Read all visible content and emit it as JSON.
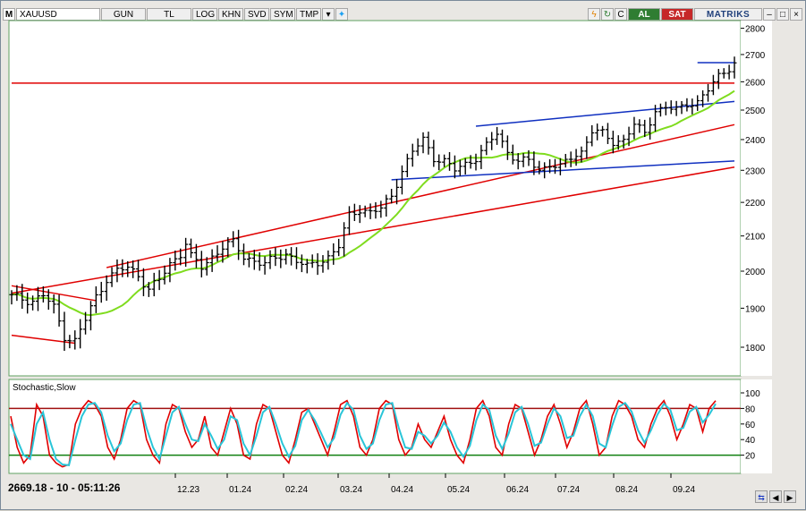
{
  "toolbar": {
    "logo": "M",
    "symbol": "XAUUSD",
    "buttons": [
      "GUN",
      "TL",
      "LOG",
      "KHN",
      "SVD",
      "SYM",
      "TMP"
    ],
    "buy_label": "AL",
    "sell_label": "SAT",
    "brand": "MATRIKS",
    "colors": {
      "buy": "#2f7d32",
      "sell": "#c62828"
    }
  },
  "status_text": "2669.18 - 10 - 05:11:26",
  "chart_data": [
    {
      "type": "line",
      "subtype": "ohlc-bars",
      "title": "",
      "x_ticks": [
        "12.23",
        "01.24",
        "02.24",
        "03.24",
        "04.24",
        "05.24",
        "06.24",
        "07.24",
        "08.24",
        "09.24"
      ],
      "y_ticks": [
        1800,
        1900,
        2000,
        2100,
        2200,
        2300,
        2400,
        2500,
        2600,
        2700,
        2800
      ],
      "ylim": [
        1730,
        2830
      ],
      "y_scale": "log",
      "grid": false,
      "price_keypoints": [
        [
          0,
          1930
        ],
        [
          4,
          1920
        ],
        [
          6,
          1935
        ],
        [
          8,
          1900
        ],
        [
          10,
          1830
        ],
        [
          12,
          1815
        ],
        [
          14,
          1870
        ],
        [
          16,
          1930
        ],
        [
          18,
          1980
        ],
        [
          20,
          2000
        ],
        [
          22,
          2010
        ],
        [
          24,
          1990
        ],
        [
          26,
          1950
        ],
        [
          28,
          1975
        ],
        [
          30,
          2020
        ],
        [
          32,
          2050
        ],
        [
          33,
          2080
        ],
        [
          34,
          2040
        ],
        [
          36,
          2010
        ],
        [
          38,
          2040
        ],
        [
          40,
          2070
        ],
        [
          42,
          2080
        ],
        [
          44,
          2040
        ],
        [
          46,
          2030
        ],
        [
          48,
          2020
        ],
        [
          50,
          2035
        ],
        [
          52,
          2050
        ],
        [
          54,
          2030
        ],
        [
          56,
          2010
        ],
        [
          58,
          2025
        ],
        [
          60,
          2040
        ],
        [
          62,
          2070
        ],
        [
          64,
          2160
        ],
        [
          66,
          2180
        ],
        [
          68,
          2170
        ],
        [
          70,
          2180
        ],
        [
          72,
          2220
        ],
        [
          74,
          2300
        ],
        [
          76,
          2360
        ],
        [
          78,
          2400
        ],
        [
          80,
          2340
        ],
        [
          82,
          2330
        ],
        [
          84,
          2300
        ],
        [
          86,
          2320
        ],
        [
          88,
          2340
        ],
        [
          90,
          2380
        ],
        [
          92,
          2420
        ],
        [
          94,
          2360
        ],
        [
          96,
          2330
        ],
        [
          98,
          2330
        ],
        [
          100,
          2300
        ],
        [
          102,
          2320
        ],
        [
          104,
          2310
        ],
        [
          106,
          2340
        ],
        [
          108,
          2360
        ],
        [
          110,
          2430
        ],
        [
          112,
          2420
        ],
        [
          114,
          2390
        ],
        [
          116,
          2400
        ],
        [
          118,
          2450
        ],
        [
          120,
          2420
        ],
        [
          122,
          2500
        ],
        [
          124,
          2510
        ],
        [
          126,
          2500
        ],
        [
          128,
          2520
        ],
        [
          130,
          2530
        ],
        [
          132,
          2570
        ],
        [
          134,
          2620
        ],
        [
          136,
          2650
        ],
        [
          137,
          2670
        ]
      ],
      "series": [
        {
          "color": "#000000"
        },
        {
          "color": "#7fdc1e",
          "note_unlabeled": "moving average"
        }
      ],
      "trendlines": [
        {
          "color": "#e00000",
          "from": [
            0,
            1940
          ],
          "to": [
            137,
            2310
          ]
        },
        {
          "color": "#e00000",
          "from": [
            18,
            2010
          ],
          "to": [
            137,
            2450
          ]
        },
        {
          "color": "#e00000",
          "from": [
            0,
            1830
          ],
          "to": [
            12,
            1810
          ]
        },
        {
          "color": "#e00000",
          "from": [
            0,
            1960
          ],
          "to": [
            16,
            1920
          ]
        },
        {
          "color": "#e00000",
          "from": [
            0,
            2595
          ],
          "to": [
            137,
            2595
          ]
        },
        {
          "color": "#1030c0",
          "from": [
            72,
            2270
          ],
          "to": [
            137,
            2330
          ]
        },
        {
          "color": "#1030c0",
          "from": [
            88,
            2445
          ],
          "to": [
            137,
            2530
          ]
        },
        {
          "color": "#1030c0",
          "from": [
            130,
            2670
          ],
          "to": [
            137,
            2670
          ]
        }
      ]
    },
    {
      "type": "line",
      "title": "Stochastic,Slow",
      "y_ticks": [
        20,
        40,
        60,
        80,
        100
      ],
      "ylim": [
        0,
        100
      ],
      "levels": [
        {
          "value": 80,
          "color": "#a01010"
        },
        {
          "value": 20,
          "color": "#108010"
        }
      ],
      "series": [
        {
          "color": "#e00000",
          "values": [
            70,
            30,
            10,
            20,
            85,
            70,
            20,
            10,
            5,
            8,
            60,
            80,
            90,
            85,
            70,
            30,
            15,
            40,
            80,
            90,
            85,
            40,
            20,
            10,
            60,
            85,
            80,
            50,
            30,
            40,
            70,
            30,
            20,
            50,
            80,
            60,
            20,
            15,
            60,
            85,
            80,
            50,
            20,
            10,
            40,
            75,
            80,
            60,
            40,
            20,
            50,
            85,
            90,
            70,
            30,
            20,
            40,
            80,
            90,
            85,
            40,
            20,
            30,
            60,
            40,
            30,
            50,
            70,
            40,
            20,
            10,
            40,
            80,
            90,
            70,
            30,
            20,
            60,
            85,
            80,
            50,
            20,
            40,
            70,
            85,
            60,
            30,
            50,
            80,
            90,
            60,
            20,
            30,
            70,
            90,
            85,
            70,
            40,
            30,
            60,
            80,
            90,
            70,
            40,
            60,
            85,
            80,
            50,
            80,
            90
          ]
        },
        {
          "color": "#29c5d8",
          "values": [
            60,
            40,
            20,
            15,
            60,
            75,
            40,
            15,
            8,
            7,
            40,
            70,
            85,
            87,
            75,
            45,
            25,
            35,
            65,
            85,
            87,
            55,
            30,
            15,
            45,
            75,
            82,
            60,
            40,
            38,
            60,
            45,
            28,
            40,
            70,
            65,
            35,
            20,
            45,
            75,
            82,
            60,
            35,
            18,
            32,
            65,
            78,
            65,
            48,
            30,
            42,
            72,
            87,
            78,
            45,
            28,
            35,
            65,
            85,
            87,
            55,
            30,
            28,
            50,
            45,
            35,
            45,
            62,
            50,
            30,
            18,
            32,
            65,
            85,
            78,
            45,
            28,
            48,
            75,
            82,
            60,
            32,
            36,
            60,
            80,
            70,
            42,
            45,
            70,
            85,
            70,
            35,
            30,
            58,
            82,
            87,
            76,
            52,
            36,
            52,
            72,
            86,
            78,
            52,
            55,
            76,
            82,
            62,
            72,
            86
          ]
        }
      ]
    }
  ]
}
